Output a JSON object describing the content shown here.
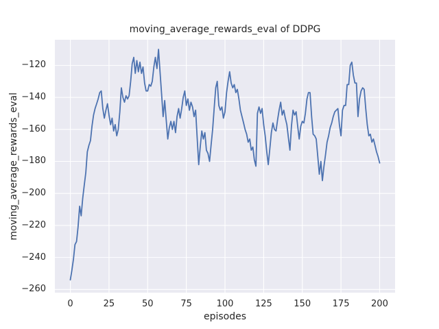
{
  "chart_data": {
    "type": "line",
    "title": "moving_average_rewards_eval of DDPG",
    "xlabel": "episodes",
    "ylabel": "moving_average_rewards_eval",
    "xlim": [
      -10,
      210
    ],
    "ylim": [
      -262,
      -104
    ],
    "grid": true,
    "legend_position": "none",
    "x_ticks": {
      "values": [
        0,
        25,
        50,
        75,
        100,
        125,
        150,
        175,
        200
      ],
      "labels": [
        "0",
        "25",
        "50",
        "75",
        "100",
        "125",
        "150",
        "175",
        "200"
      ]
    },
    "y_ticks": {
      "values": [
        -260,
        -240,
        -220,
        -200,
        -180,
        -160,
        -140,
        -120
      ],
      "labels": [
        "−260",
        "−240",
        "−220",
        "−200",
        "−180",
        "−160",
        "−140",
        "−120"
      ]
    },
    "colors": {
      "line": "#4C72B0",
      "axes_background": "#EAEAF2",
      "grid": "#FFFFFF",
      "text": "#262626",
      "figure_background": "#FFFFFF"
    },
    "series": [
      {
        "name": "moving_average_rewards_eval",
        "x_start": 0,
        "x_step": 1,
        "values": [
          -254,
          -248,
          -241,
          -232,
          -230,
          -221,
          -208,
          -214,
          -203,
          -195,
          -187,
          -174,
          -170,
          -167,
          -158,
          -151,
          -147,
          -144,
          -141,
          -137,
          -136,
          -147,
          -153,
          -148,
          -144,
          -151,
          -157,
          -153,
          -161,
          -157,
          -164,
          -160,
          -149,
          -134,
          -140,
          -143,
          -139,
          -141,
          -139,
          -130,
          -119,
          -115,
          -125,
          -117,
          -124,
          -118,
          -125,
          -121,
          -131,
          -136,
          -136,
          -132,
          -133,
          -130,
          -121,
          -115,
          -122,
          -110,
          -124,
          -138,
          -152,
          -142,
          -154,
          -166,
          -159,
          -155,
          -160,
          -155,
          -162,
          -152,
          -147,
          -153,
          -147,
          -140,
          -136,
          -145,
          -141,
          -148,
          -143,
          -146,
          -152,
          -148,
          -165,
          -182,
          -171,
          -161,
          -166,
          -162,
          -173,
          -175,
          -180,
          -170,
          -160,
          -147,
          -134,
          -130,
          -145,
          -148,
          -146,
          -153,
          -149,
          -137,
          -130,
          -124,
          -131,
          -134,
          -132,
          -137,
          -135,
          -141,
          -148,
          -152,
          -156,
          -160,
          -163,
          -168,
          -166,
          -173,
          -171,
          -179,
          -183,
          -150,
          -146,
          -150,
          -147,
          -157,
          -164,
          -174,
          -182,
          -172,
          -162,
          -156,
          -160,
          -161,
          -154,
          -148,
          -143,
          -151,
          -148,
          -153,
          -157,
          -165,
          -173,
          -158,
          -148,
          -151,
          -149,
          -158,
          -166,
          -158,
          -155,
          -156,
          -150,
          -141,
          -137,
          -137,
          -152,
          -163,
          -164,
          -166,
          -177,
          -188,
          -180,
          -192,
          -183,
          -176,
          -168,
          -164,
          -159,
          -156,
          -152,
          -149,
          -148,
          -147,
          -157,
          -164,
          -148,
          -145,
          -145,
          -132,
          -132,
          -120,
          -118,
          -126,
          -131,
          -131,
          -152,
          -141,
          -136,
          -134,
          -135,
          -147,
          -157,
          -164,
          -163,
          -168,
          -166,
          -170,
          -174,
          -177,
          -181
        ]
      }
    ]
  }
}
